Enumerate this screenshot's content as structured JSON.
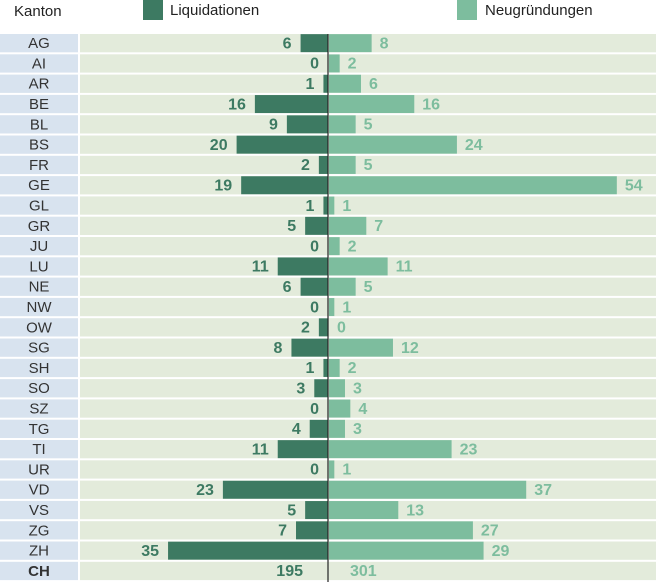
{
  "chart_data": {
    "type": "bar",
    "category_header": "Kanton",
    "categories": [
      "AG",
      "AI",
      "AR",
      "BE",
      "BL",
      "BS",
      "FR",
      "GE",
      "GL",
      "GR",
      "JU",
      "LU",
      "NE",
      "NW",
      "OW",
      "SG",
      "SH",
      "SO",
      "SZ",
      "TG",
      "TI",
      "UR",
      "VD",
      "VS",
      "ZG",
      "ZH"
    ],
    "series": [
      {
        "name": "Liquidationen",
        "color": "#3d7a62",
        "values": [
          6,
          0,
          1,
          16,
          9,
          20,
          2,
          19,
          1,
          5,
          0,
          11,
          6,
          0,
          2,
          8,
          1,
          3,
          0,
          4,
          11,
          0,
          23,
          5,
          7,
          35
        ],
        "total": 195
      },
      {
        "name": "Neugründungen",
        "color": "#7dbd9e",
        "values": [
          8,
          2,
          6,
          16,
          5,
          24,
          5,
          54,
          1,
          7,
          2,
          11,
          5,
          1,
          0,
          12,
          2,
          3,
          4,
          3,
          23,
          1,
          37,
          13,
          27,
          29
        ],
        "total": 301
      }
    ],
    "total_label": "CH"
  }
}
